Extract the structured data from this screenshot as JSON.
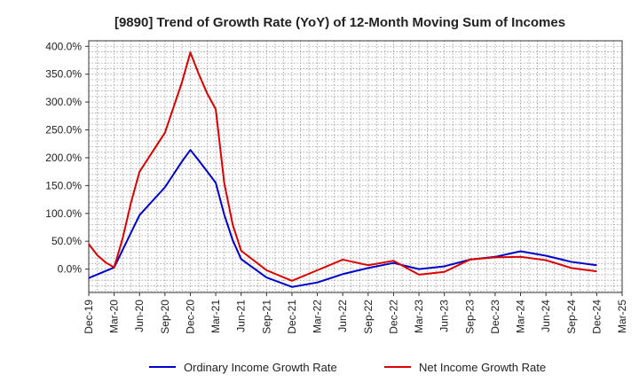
{
  "chart_data": {
    "type": "line",
    "title": "[9890]  Trend of Growth Rate (YoY) of 12-Month Moving Sum of Incomes",
    "xlabel": "",
    "ylabel": "",
    "x_tick_labels": [
      "Dec-19",
      "Mar-20",
      "Jun-20",
      "Sep-20",
      "Dec-20",
      "Mar-21",
      "Jun-21",
      "Sep-21",
      "Dec-21",
      "Mar-22",
      "Jun-22",
      "Sep-22",
      "Dec-22",
      "Mar-23",
      "Jun-23",
      "Sep-23",
      "Dec-23",
      "Mar-24",
      "Jun-24",
      "Sep-24",
      "Dec-24",
      "Mar-25"
    ],
    "y_tick_labels": [
      "0.0%",
      "50.0%",
      "100.0%",
      "150.0%",
      "200.0%",
      "250.0%",
      "300.0%",
      "350.0%",
      "400.0%"
    ],
    "y_ticks": [
      0,
      50,
      100,
      150,
      200,
      250,
      300,
      350,
      400
    ],
    "ylim": [
      -42,
      410
    ],
    "grid": true,
    "legend_position": "bottom",
    "series": [
      {
        "name": "Ordinary Income Growth Rate",
        "color": "#0000cc",
        "points": [
          [
            "Dec-19",
            -16
          ],
          [
            "Mar-20",
            3
          ],
          [
            "Jun-20",
            97
          ],
          [
            "Sep-20",
            147
          ],
          [
            "Oct-20",
            170
          ],
          [
            "Nov-20",
            193
          ],
          [
            "Dec-20",
            214
          ],
          [
            "Jan-21",
            195
          ],
          [
            "Feb-21",
            175
          ],
          [
            "Mar-21",
            155
          ],
          [
            "Apr-21",
            98
          ],
          [
            "May-21",
            52
          ],
          [
            "Jun-21",
            18
          ],
          [
            "Sep-21",
            -15
          ],
          [
            "Dec-21",
            -32
          ],
          [
            "Mar-22",
            -24
          ],
          [
            "Jun-22",
            -9
          ],
          [
            "Sep-22",
            2
          ],
          [
            "Dec-22",
            11
          ],
          [
            "Mar-23",
            0
          ],
          [
            "Jun-23",
            5
          ],
          [
            "Sep-23",
            17
          ],
          [
            "Dec-23",
            22
          ],
          [
            "Mar-24",
            32
          ],
          [
            "Jun-24",
            24
          ],
          [
            "Sep-24",
            13
          ],
          [
            "Dec-24",
            7
          ]
        ]
      },
      {
        "name": "Net Income Growth Rate",
        "color": "#dd0000",
        "points": [
          [
            "Dec-19",
            45
          ],
          [
            "Jan-20",
            25
          ],
          [
            "Feb-20",
            12
          ],
          [
            "Mar-20",
            3
          ],
          [
            "Apr-20",
            55
          ],
          [
            "May-20",
            120
          ],
          [
            "Jun-20",
            175
          ],
          [
            "Sep-20",
            245
          ],
          [
            "Oct-20",
            290
          ],
          [
            "Nov-20",
            335
          ],
          [
            "Dec-20",
            389
          ],
          [
            "Jan-21",
            350
          ],
          [
            "Feb-21",
            315
          ],
          [
            "Mar-21",
            287
          ],
          [
            "Apr-21",
            155
          ],
          [
            "May-21",
            80
          ],
          [
            "Jun-21",
            33
          ],
          [
            "Sep-21",
            -2
          ],
          [
            "Dec-21",
            -21
          ],
          [
            "Mar-22",
            -2
          ],
          [
            "Jun-22",
            17
          ],
          [
            "Sep-22",
            7
          ],
          [
            "Dec-22",
            15
          ],
          [
            "Mar-23",
            -10
          ],
          [
            "Jun-23",
            -5
          ],
          [
            "Sep-23",
            17
          ],
          [
            "Dec-23",
            21
          ],
          [
            "Mar-24",
            22
          ],
          [
            "Jun-24",
            16
          ],
          [
            "Sep-24",
            2
          ],
          [
            "Dec-24",
            -4
          ]
        ]
      }
    ]
  }
}
